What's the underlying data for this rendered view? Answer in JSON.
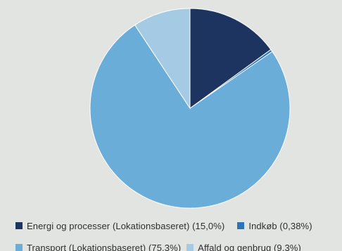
{
  "chart_data": {
    "type": "pie",
    "title": "",
    "start_angle_deg": 0,
    "direction": "clockwise",
    "slices": [
      {
        "label": "Energi og processer (Lokationsbaseret)",
        "value_label": "(15,0%)",
        "value": 15.0,
        "color": "#1d3461"
      },
      {
        "label": "Indkøb",
        "value_label": "(0,38%)",
        "value": 0.38,
        "color": "#2a74b8"
      },
      {
        "label": "Transport (Lokationsbaseret)",
        "value_label": "(75,3%)",
        "value": 75.3,
        "color": "#6aadd9"
      },
      {
        "label": "Affald og genbrug",
        "value_label": "(9,3%)",
        "value": 9.3,
        "color": "#a4cbe3"
      }
    ],
    "legend_position": "bottom"
  },
  "legend": {
    "rows": [
      [
        {
          "text": "Energi og processer (Lokationsbaseret)  (15,0%)",
          "color": "#1d3461"
        },
        {
          "text": "Indkøb  (0,38%)",
          "color": "#2a74b8"
        }
      ],
      [
        {
          "text": "Transport (Lokationsbaseret)  (75,3%)",
          "color": "#6aadd9"
        },
        {
          "text": "Affald og genbrug  (9,3%)",
          "color": "#a4cbe3"
        }
      ]
    ]
  },
  "colors": {
    "background": "#e2e4e2",
    "slice_border": "#ffffff"
  }
}
